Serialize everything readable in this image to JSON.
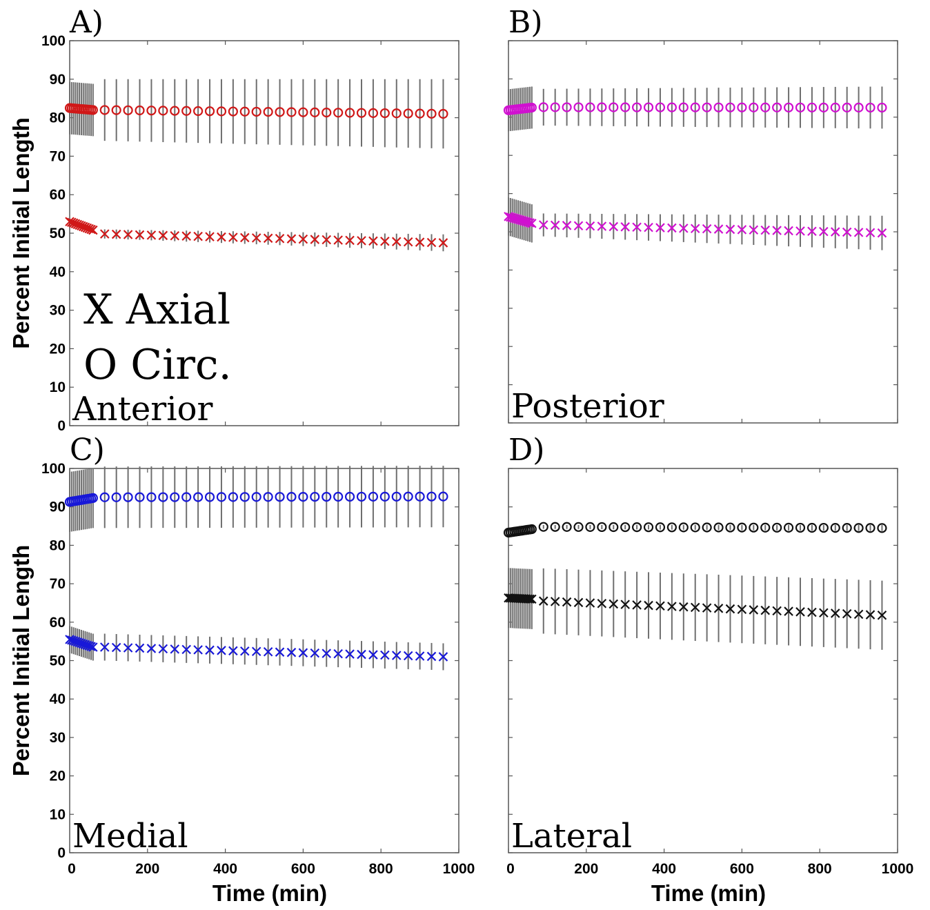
{
  "chart_data": [
    {
      "type": "scatter",
      "panel_letter": "A)",
      "panel_name": "Anterior",
      "legend": [
        "X Axial",
        "O Circ."
      ],
      "ylabel": "Percent Initial Length",
      "xlabel": "",
      "xlim": [
        0,
        1000
      ],
      "ylim": [
        0,
        100
      ],
      "yticks": [
        "0",
        "10",
        "20",
        "30",
        "40",
        "50",
        "60",
        "70",
        "80",
        "90",
        "100"
      ],
      "xticks": [],
      "color": "#d01818",
      "series": [
        {
          "marker": "o",
          "early": {
            "start": 82.5,
            "end": 82.0,
            "err": 6.8
          },
          "late": {
            "start": 82.0,
            "end": 81.0,
            "err_start": 8.0,
            "err_end": 9.0
          }
        },
        {
          "marker": "x",
          "early": {
            "start": 53.0,
            "end": 50.8,
            "err": 0.6
          },
          "late": {
            "start": 49.8,
            "end": 47.5,
            "err_start": 1.2,
            "err_end": 2.2
          }
        }
      ]
    },
    {
      "type": "scatter",
      "panel_letter": "B)",
      "panel_name": "Posterior",
      "legend": [],
      "ylabel": "",
      "xlabel": "",
      "xlim": [
        0,
        1000
      ],
      "ylim": [
        0,
        100
      ],
      "yticks": [],
      "xticks": [],
      "color": "#d010d0",
      "series": [
        {
          "marker": "o",
          "early": {
            "start": 81.8,
            "end": 82.5,
            "err": 5.5
          },
          "late": {
            "start": 82.6,
            "end": 82.5,
            "err_start": 4.8,
            "err_end": 5.5
          }
        },
        {
          "marker": "x",
          "early": {
            "start": 54.0,
            "end": 52.2,
            "err": 5.0
          },
          "late": {
            "start": 51.8,
            "end": 49.7,
            "err_start": 3.0,
            "err_end": 4.5
          }
        }
      ]
    },
    {
      "type": "scatter",
      "panel_letter": "C)",
      "panel_name": "Medial",
      "legend": [],
      "ylabel": "Percent Initial Length",
      "xlabel": "Time (min)",
      "xlim": [
        0,
        1000
      ],
      "ylim": [
        0,
        100
      ],
      "yticks": [
        "0",
        "10",
        "20",
        "30",
        "40",
        "50",
        "60",
        "70",
        "80",
        "90",
        "100"
      ],
      "xticks": [
        "0",
        "200",
        "400",
        "600",
        "800",
        "1000"
      ],
      "color": "#1818d8",
      "series": [
        {
          "marker": "o",
          "early": {
            "start": 91.3,
            "end": 92.3,
            "err": 7.8
          },
          "late": {
            "start": 92.5,
            "end": 92.7,
            "err_start": 8.0,
            "err_end": 8.0
          }
        },
        {
          "marker": "x",
          "early": {
            "start": 55.5,
            "end": 53.5,
            "err": 3.5
          },
          "late": {
            "start": 53.5,
            "end": 51.0,
            "err_start": 3.5,
            "err_end": 3.5
          }
        }
      ]
    },
    {
      "type": "scatter",
      "panel_letter": "D)",
      "panel_name": "Lateral",
      "legend": [],
      "ylabel": "",
      "xlabel": "Time (min)",
      "xlim": [
        0,
        1000
      ],
      "ylim": [
        0,
        100
      ],
      "yticks": [],
      "xticks": [
        "0",
        "200",
        "400",
        "600",
        "800",
        "1000"
      ],
      "color": "#111111",
      "series": [
        {
          "marker": "o",
          "early": {
            "start": 83.3,
            "end": 84.2,
            "err": 0.5
          },
          "late": {
            "start": 84.8,
            "end": 84.5,
            "err_start": 0.5,
            "err_end": 0.8
          }
        },
        {
          "marker": "x",
          "early": {
            "start": 66.3,
            "end": 66.0,
            "err": 7.8
          },
          "late": {
            "start": 65.5,
            "end": 61.8,
            "err_start": 8.5,
            "err_end": 9.0
          }
        }
      ]
    }
  ]
}
